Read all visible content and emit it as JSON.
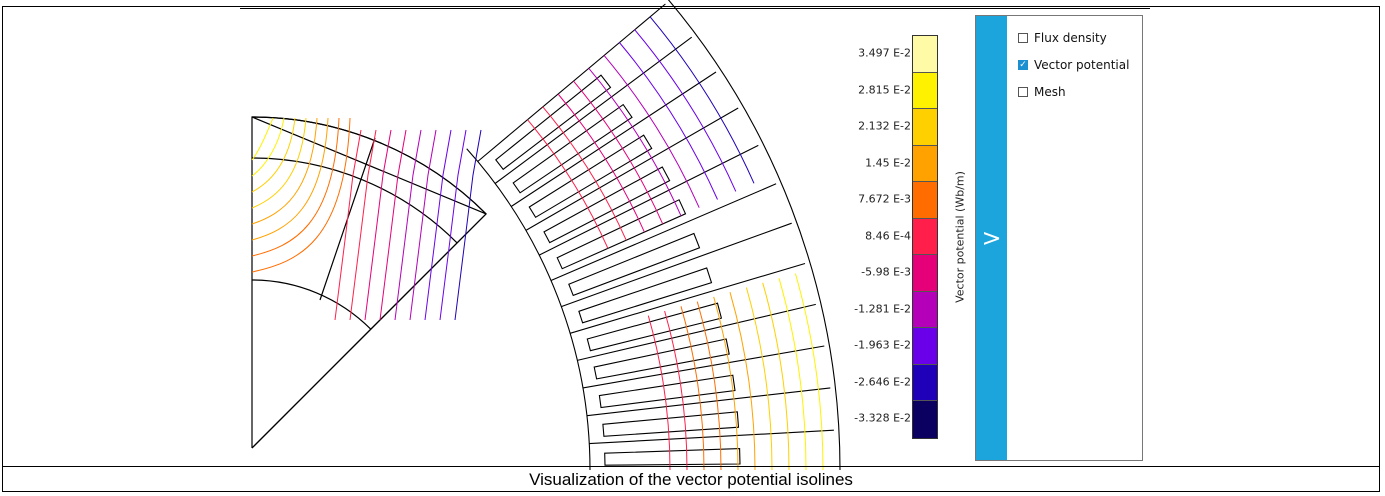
{
  "legend": {
    "title": "Vector potential (Wb/m)",
    "ticks": [
      "3.497 E-2",
      "2.815 E-2",
      "2.132 E-2",
      "1.45 E-2",
      "7.672 E-3",
      "8.46 E-4",
      "-5.98 E-3",
      "-1.281 E-2",
      "-1.963 E-2",
      "-2.646 E-2",
      "-3.328 E-2"
    ],
    "colors": [
      "#fffaa6",
      "#fff200",
      "#ffd000",
      "#ffa200",
      "#ff6d00",
      "#ff1f4a",
      "#e5007a",
      "#b400b8",
      "#6a00ea",
      "#1f00b8",
      "#0b0060"
    ]
  },
  "panel": {
    "toggle_label": ">",
    "options": [
      {
        "label": "Flux density",
        "checked": false
      },
      {
        "label": "Vector potential",
        "checked": true
      },
      {
        "label": "Mesh",
        "checked": false
      }
    ]
  },
  "caption": "Visualization of the vector potential isolines"
}
